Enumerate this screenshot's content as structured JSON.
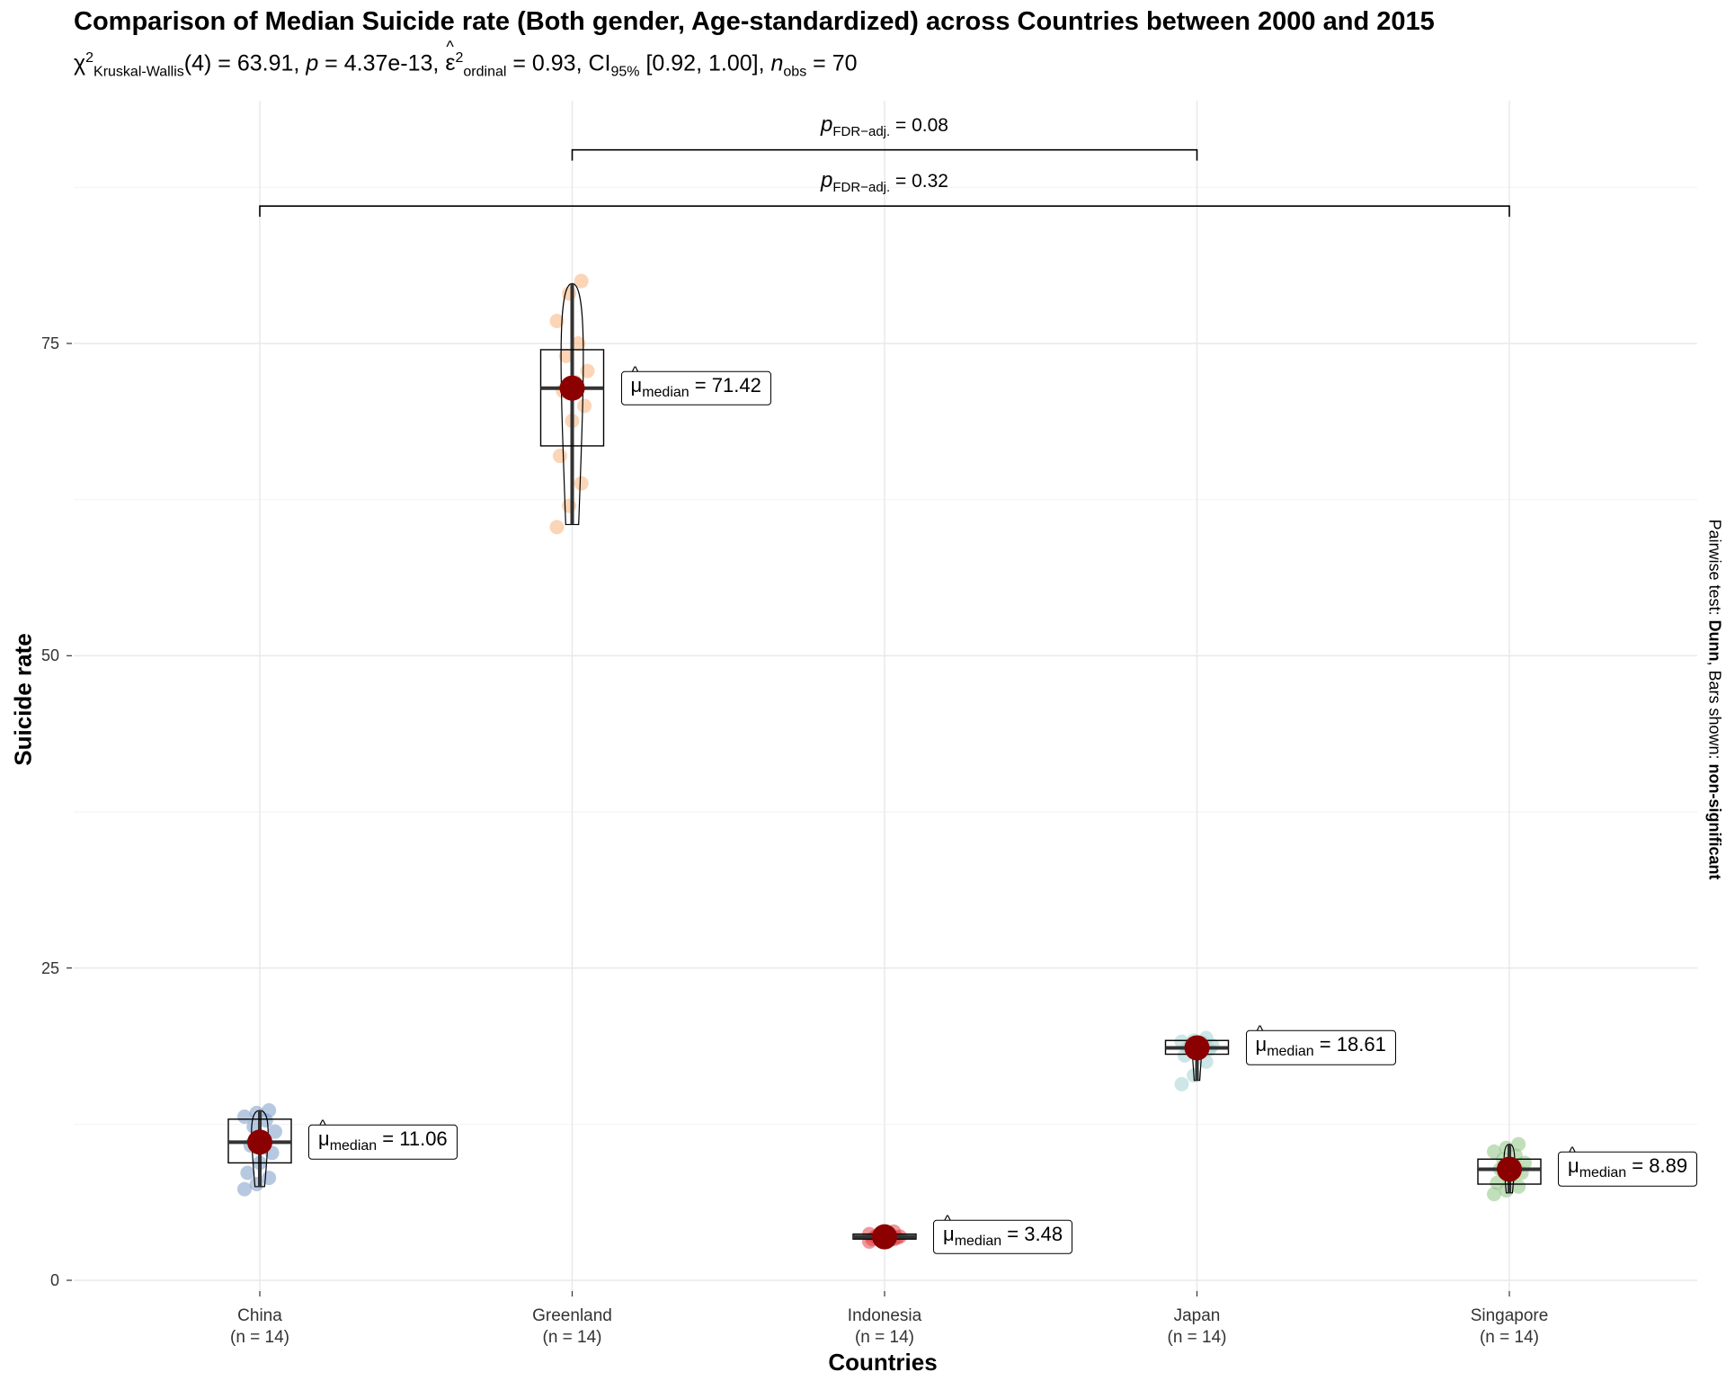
{
  "chart_data": {
    "type": "boxplot",
    "title": "Comparison of Median Suicide rate (Both gender, Age-standardized) across Countries between 2000 and 2015",
    "subtitle": {
      "stat_symbol": "χ",
      "stat_sub": "Kruskal-Wallis",
      "df": "(4)",
      "stat_value": "63.91",
      "p_symbol": "p",
      "p_value": "4.37e-13",
      "effect_symbol": "ε",
      "effect_sub": "ordinal",
      "effect_value": "0.93",
      "ci_label": "CI",
      "ci_sub": "95%",
      "ci_value": "[0.92, 1.00]",
      "n_symbol": "n",
      "n_sub": "obs",
      "n_value": "70"
    },
    "xlabel": "Countries",
    "ylabel": "Suicide rate",
    "caption": {
      "prefix": "Pairwise test: ",
      "test": "Dunn",
      "middle": ", Bars shown: ",
      "shown": "non-significant"
    },
    "ylim": [
      -0.8,
      95
    ],
    "yticks": [
      0,
      25,
      50,
      75
    ],
    "gridlines": true,
    "categories": [
      {
        "name": "China",
        "n_label": "(n = 14)",
        "color": "#7b9cc7",
        "median": 11.06,
        "median_label": "11.06",
        "box": {
          "q1": 9.4,
          "q3": 12.9,
          "min": 7.5,
          "max": 13.6
        },
        "points": [
          7.3,
          7.7,
          8.2,
          8.6,
          9.4,
          10.2,
          10.8,
          11.3,
          11.9,
          12.3,
          12.8,
          13.1,
          13.4,
          13.6
        ]
      },
      {
        "name": "Greenland",
        "n_label": "(n = 14)",
        "color": "#f7b27a",
        "median": 71.42,
        "median_label": "71.42",
        "box": {
          "q1": 66.8,
          "q3": 74.5,
          "min": 60.5,
          "max": 79.8
        },
        "points": [
          60.3,
          62.0,
          63.8,
          66.0,
          68.8,
          70.0,
          71.2,
          71.9,
          72.8,
          74.0,
          75.0,
          76.8,
          79.0,
          80.0
        ]
      },
      {
        "name": "Indonesia",
        "n_label": "(n = 14)",
        "color": "#e0434a",
        "median": 3.48,
        "median_label": "3.48",
        "box": {
          "q1": 3.3,
          "q3": 3.7,
          "min": 2.9,
          "max": 4.1
        },
        "points": [
          3.1,
          3.2,
          3.3,
          3.3,
          3.4,
          3.4,
          3.5,
          3.5,
          3.5,
          3.6,
          3.6,
          3.7,
          3.8,
          3.9
        ]
      },
      {
        "name": "Japan",
        "n_label": "(n = 14)",
        "color": "#a6d4d1",
        "median": 18.61,
        "median_label": "18.61",
        "box": {
          "q1": 18.1,
          "q3": 19.2,
          "min": 16.0,
          "max": 19.5
        },
        "points": [
          15.7,
          16.4,
          17.5,
          18.0,
          18.3,
          18.5,
          18.6,
          18.7,
          18.8,
          18.9,
          19.0,
          19.1,
          19.2,
          19.4
        ]
      },
      {
        "name": "Singapore",
        "n_label": "(n = 14)",
        "color": "#8fc485",
        "median": 8.89,
        "median_label": "8.89",
        "box": {
          "q1": 7.7,
          "q3": 9.7,
          "min": 7.0,
          "max": 10.9
        },
        "points": [
          6.9,
          7.2,
          7.5,
          7.8,
          8.2,
          8.6,
          8.9,
          9.1,
          9.4,
          9.7,
          10.0,
          10.3,
          10.6,
          10.9
        ]
      }
    ],
    "pairwise": [
      {
        "from": "Greenland",
        "to": "Japan",
        "y": 90.5,
        "p_label_symbol": "p",
        "p_label_sub": "FDR−adj.",
        "p_value": "0.08"
      },
      {
        "from": "China",
        "to": "Singapore",
        "y": 86.0,
        "p_label_symbol": "p",
        "p_label_sub": "FDR−adj.",
        "p_value": "0.32"
      }
    ],
    "median_marker_color": "#8b0000",
    "median_label_prefix": "μ",
    "median_label_sub": "median"
  }
}
